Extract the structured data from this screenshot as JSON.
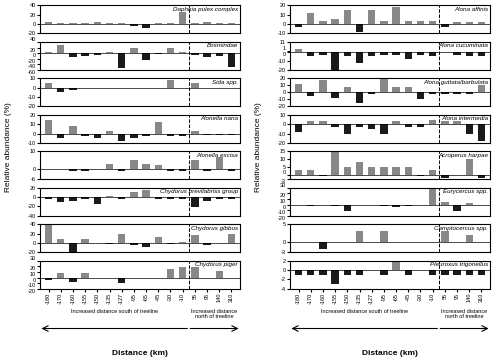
{
  "chart_data": [
    {
      "type": "bar",
      "title": "Daphnia pulex complex",
      "tick_labels": "y",
      "treeline": "-10",
      "categories": [
        "-180",
        "-170",
        "-160",
        "-155",
        "-150",
        "-135",
        "-127",
        "-95",
        "-65",
        "-45",
        "-30",
        "-10",
        "55",
        "95",
        "140",
        "310"
      ],
      "values": [
        5,
        3,
        2,
        2,
        5,
        3,
        3,
        -3,
        -8,
        3,
        3,
        25,
        2,
        5,
        3,
        3
      ],
      "colors": [
        "#888888",
        "#888888",
        "#888888",
        "#888888",
        "#888888",
        "#888888",
        "#888888",
        "#1a1a1a",
        "#1a1a1a",
        "#888888",
        "#888888",
        "#888888",
        "#888888",
        "#888888",
        "#888888",
        "#888888"
      ],
      "ylim": [
        -20,
        40
      ],
      "yticks": [
        -20,
        0,
        20,
        40
      ],
      "grid": false
    },
    {
      "type": "bar",
      "title": "Bosmindae",
      "tick_labels": "y",
      "treeline": "-10",
      "categories": [
        "-180",
        "-170",
        "-160",
        "-155",
        "-150",
        "-135",
        "-127",
        "-95",
        "-65",
        "-45",
        "-30",
        "-10",
        "55",
        "95",
        "140",
        "310"
      ],
      "values": [
        5,
        30,
        -15,
        -10,
        -5,
        5,
        -52,
        18,
        -25,
        -3,
        18,
        5,
        -8,
        -15,
        -12,
        -50
      ],
      "colors": [
        "#888888",
        "#888888",
        "#1a1a1a",
        "#1a1a1a",
        "#1a1a1a",
        "#888888",
        "#1a1a1a",
        "#888888",
        "#1a1a1a",
        "#1a1a1a",
        "#888888",
        "#888888",
        "#1a1a1a",
        "#1a1a1a",
        "#1a1a1a",
        "#1a1a1a"
      ],
      "ylim": [
        -60,
        40
      ],
      "yticks": [
        -60,
        -40,
        -20,
        0,
        20,
        40
      ],
      "grid": false
    },
    {
      "type": "bar",
      "title": "Sida spp.",
      "tick_labels": "y",
      "treeline": "-10",
      "categories": [
        "-180",
        "-170",
        "-160",
        "-155",
        "-150",
        "-135",
        "-127",
        "-95",
        "-65",
        "-45",
        "-30",
        "-10",
        "55",
        "95",
        "140",
        "310"
      ],
      "values": [
        5,
        -5,
        -2,
        0,
        0,
        0,
        0,
        0,
        0,
        0,
        8,
        0,
        5,
        0,
        0,
        0
      ],
      "colors": [
        "#888888",
        "#1a1a1a",
        "#1a1a1a",
        "#888888",
        "#888888",
        "#888888",
        "#888888",
        "#888888",
        "#888888",
        "#888888",
        "#888888",
        "#888888",
        "#888888",
        "#888888",
        "#888888",
        "#888888"
      ],
      "ylim": [
        -20,
        10
      ],
      "yticks": [
        -20,
        -10,
        0,
        10
      ],
      "grid": false
    },
    {
      "type": "bar",
      "title": "Alonella nana",
      "tick_labels": "y",
      "treeline": "-10",
      "categories": [
        "-180",
        "-170",
        "-160",
        "-155",
        "-150",
        "-135",
        "-127",
        "-95",
        "-65",
        "-45",
        "-30",
        "-10",
        "55",
        "95",
        "140",
        "310"
      ],
      "values": [
        15,
        -5,
        8,
        -3,
        -5,
        3,
        -8,
        -5,
        -3,
        12,
        -3,
        -3,
        3,
        -2,
        -2,
        -2
      ],
      "colors": [
        "#888888",
        "#1a1a1a",
        "#888888",
        "#1a1a1a",
        "#1a1a1a",
        "#888888",
        "#1a1a1a",
        "#1a1a1a",
        "#1a1a1a",
        "#888888",
        "#1a1a1a",
        "#1a1a1a",
        "#888888",
        "#1a1a1a",
        "#1a1a1a",
        "#1a1a1a"
      ],
      "ylim": [
        -10,
        20
      ],
      "yticks": [
        -10,
        0,
        10,
        20
      ],
      "grid": false
    },
    {
      "type": "bar",
      "title": "Alonella excisa",
      "tick_labels": "y",
      "treeline": "-10",
      "categories": [
        "-180",
        "-170",
        "-160",
        "-155",
        "-150",
        "-135",
        "-127",
        "-95",
        "-65",
        "-45",
        "-30",
        "-10",
        "55",
        "95",
        "140",
        "310"
      ],
      "values": [
        0,
        0,
        -1,
        -1,
        0,
        3,
        -1,
        5,
        3,
        2,
        -1,
        -1,
        5,
        -1,
        7,
        -1
      ],
      "colors": [
        "#888888",
        "#888888",
        "#1a1a1a",
        "#1a1a1a",
        "#888888",
        "#888888",
        "#1a1a1a",
        "#888888",
        "#888888",
        "#888888",
        "#1a1a1a",
        "#1a1a1a",
        "#888888",
        "#1a1a1a",
        "#888888",
        "#1a1a1a"
      ],
      "ylim": [
        -6,
        10
      ],
      "yticks": [
        -6,
        0,
        10
      ],
      "grid": false
    },
    {
      "type": "bar",
      "title": "Chydorus brevilabriss group",
      "tick_labels": "y",
      "treeline": "-10",
      "categories": [
        "-180",
        "-170",
        "-160",
        "-155",
        "-150",
        "-135",
        "-127",
        "-95",
        "-65",
        "-45",
        "-30",
        "-10",
        "55",
        "95",
        "140",
        "310"
      ],
      "values": [
        -5,
        -10,
        -8,
        -5,
        -15,
        3,
        -3,
        12,
        15,
        -3,
        -5,
        -3,
        -22,
        -8,
        -5,
        -5
      ],
      "colors": [
        "#1a1a1a",
        "#1a1a1a",
        "#1a1a1a",
        "#1a1a1a",
        "#1a1a1a",
        "#888888",
        "#1a1a1a",
        "#888888",
        "#888888",
        "#1a1a1a",
        "#1a1a1a",
        "#1a1a1a",
        "#1a1a1a",
        "#1a1a1a",
        "#1a1a1a",
        "#1a1a1a"
      ],
      "ylim": [
        -40,
        20
      ],
      "yticks": [
        -40,
        -20,
        0,
        20
      ],
      "grid": false
    },
    {
      "type": "bar",
      "title": "Chydorus gibbus",
      "tick_labels": "y",
      "treeline": "-10",
      "categories": [
        "-180",
        "-170",
        "-160",
        "-155",
        "-150",
        "-135",
        "-127",
        "-95",
        "-65",
        "-45",
        "-30",
        "-10",
        "55",
        "95",
        "140",
        "310"
      ],
      "values": [
        40,
        8,
        -20,
        8,
        0,
        -2,
        20,
        -5,
        -8,
        12,
        -3,
        3,
        18,
        -5,
        0,
        20
      ],
      "colors": [
        "#888888",
        "#888888",
        "#1a1a1a",
        "#888888",
        "#888888",
        "#1a1a1a",
        "#888888",
        "#1a1a1a",
        "#1a1a1a",
        "#888888",
        "#1a1a1a",
        "#888888",
        "#888888",
        "#1a1a1a",
        "#888888",
        "#888888"
      ],
      "ylim": [
        -20,
        40
      ],
      "yticks": [
        -20,
        0,
        20,
        40
      ],
      "grid": false
    },
    {
      "type": "bar",
      "title": "Chydorus piger",
      "treeline": "-10",
      "xlabel": "Distance (km)",
      "ylabel": "Relative abundance (%)",
      "annotations": [
        "Increased distance south of treeline",
        "Increased distance\nnorth of treeline"
      ],
      "categories": [
        "-180",
        "-170",
        "-160",
        "-155",
        "-150",
        "-135",
        "-127",
        "-95",
        "-65",
        "-45",
        "-30",
        "-10",
        "55",
        "95",
        "140",
        "310"
      ],
      "values": [
        -5,
        8,
        -8,
        8,
        0,
        0,
        -10,
        0,
        0,
        0,
        15,
        18,
        18,
        0,
        12,
        0
      ],
      "colors": [
        "#1a1a1a",
        "#888888",
        "#1a1a1a",
        "#888888",
        "#888888",
        "#888888",
        "#1a1a1a",
        "#888888",
        "#888888",
        "#888888",
        "#888888",
        "#888888",
        "#888888",
        "#888888",
        "#888888",
        "#888888"
      ],
      "ylim": [
        -20,
        30
      ],
      "yticks": [
        -20,
        -10,
        0,
        10,
        20,
        30
      ],
      "grid": false
    },
    {
      "type": "bar",
      "title": "Alona affinis",
      "tick_labels": "y",
      "treeline": "-10",
      "categories": [
        "-180",
        "-170",
        "-160",
        "-155",
        "-150",
        "-135",
        "-127",
        "-95",
        "-65",
        "-45",
        "-30",
        "-10",
        "55",
        "95",
        "140",
        "310"
      ],
      "values": [
        -3,
        12,
        3,
        5,
        15,
        -8,
        15,
        3,
        18,
        3,
        3,
        3,
        -3,
        2,
        2,
        2
      ],
      "colors": [
        "#1a1a1a",
        "#888888",
        "#888888",
        "#888888",
        "#888888",
        "#1a1a1a",
        "#888888",
        "#888888",
        "#888888",
        "#888888",
        "#888888",
        "#888888",
        "#1a1a1a",
        "#888888",
        "#888888",
        "#888888"
      ],
      "ylim": [
        -10,
        20
      ],
      "yticks": [
        -10,
        0,
        10,
        20
      ],
      "grid": false
    },
    {
      "type": "bar",
      "title": "Alona cucuminata",
      "tick_labels": "y",
      "treeline": "-10",
      "categories": [
        "-180",
        "-170",
        "-160",
        "-155",
        "-150",
        "-135",
        "-127",
        "-95",
        "-65",
        "-45",
        "-30",
        "-10",
        "55",
        "95",
        "140",
        "310"
      ],
      "values": [
        3,
        -5,
        -3,
        -20,
        -5,
        -12,
        -5,
        -3,
        -3,
        -8,
        -3,
        -5,
        0,
        -3,
        -5,
        -5
      ],
      "colors": [
        "#888888",
        "#1a1a1a",
        "#1a1a1a",
        "#1a1a1a",
        "#1a1a1a",
        "#1a1a1a",
        "#1a1a1a",
        "#1a1a1a",
        "#1a1a1a",
        "#1a1a1a",
        "#1a1a1a",
        "#1a1a1a",
        "#888888",
        "#1a1a1a",
        "#1a1a1a",
        "#1a1a1a"
      ],
      "ylim": [
        -20,
        11
      ],
      "yticks": [
        -20,
        -10,
        0,
        1,
        11
      ],
      "grid": false
    },
    {
      "type": "bar",
      "title": "Alona guttata/barbulata",
      "tick_labels": "y",
      "treeline": "-10",
      "categories": [
        "-180",
        "-170",
        "-160",
        "-155",
        "-150",
        "-135",
        "-127",
        "-95",
        "-65",
        "-45",
        "-30",
        "-10",
        "55",
        "95",
        "140",
        "310"
      ],
      "values": [
        12,
        -5,
        18,
        -8,
        8,
        -15,
        -3,
        20,
        8,
        8,
        -10,
        -3,
        -3,
        -3,
        -2,
        10
      ],
      "colors": [
        "#888888",
        "#1a1a1a",
        "#888888",
        "#1a1a1a",
        "#888888",
        "#1a1a1a",
        "#1a1a1a",
        "#888888",
        "#888888",
        "#888888",
        "#1a1a1a",
        "#1a1a1a",
        "#1a1a1a",
        "#1a1a1a",
        "#1a1a1a",
        "#888888"
      ],
      "ylim": [
        -20,
        20
      ],
      "yticks": [
        -20,
        -10,
        0,
        10,
        20
      ],
      "grid": false
    },
    {
      "type": "bar",
      "title": "Alona intermedia",
      "tick_labels": "y",
      "treeline": "-10",
      "categories": [
        "-180",
        "-170",
        "-160",
        "-155",
        "-150",
        "-135",
        "-127",
        "-95",
        "-65",
        "-45",
        "-30",
        "-10",
        "55",
        "95",
        "140",
        "310"
      ],
      "values": [
        -8,
        3,
        3,
        -3,
        -10,
        -3,
        -5,
        -10,
        3,
        -3,
        -3,
        5,
        3,
        3,
        -10,
        -18
      ],
      "colors": [
        "#1a1a1a",
        "#888888",
        "#888888",
        "#1a1a1a",
        "#1a1a1a",
        "#1a1a1a",
        "#1a1a1a",
        "#1a1a1a",
        "#888888",
        "#1a1a1a",
        "#1a1a1a",
        "#888888",
        "#888888",
        "#888888",
        "#1a1a1a",
        "#1a1a1a"
      ],
      "ylim": [
        -20,
        10
      ],
      "yticks": [
        -20,
        -10,
        0,
        10
      ],
      "grid": false
    },
    {
      "type": "bar",
      "title": "Acroperus harpae",
      "tick_labels": "y",
      "treeline": "-10",
      "categories": [
        "-180",
        "-170",
        "-160",
        "-155",
        "-150",
        "-135",
        "-127",
        "-95",
        "-65",
        "-45",
        "-30",
        "-10",
        "55",
        "95",
        "140",
        "310"
      ],
      "values": [
        3,
        3,
        -1,
        15,
        5,
        8,
        5,
        5,
        5,
        5,
        -1,
        3,
        -2,
        0,
        10,
        -2
      ],
      "colors": [
        "#888888",
        "#888888",
        "#1a1a1a",
        "#888888",
        "#888888",
        "#888888",
        "#888888",
        "#888888",
        "#888888",
        "#888888",
        "#1a1a1a",
        "#888888",
        "#1a1a1a",
        "#888888",
        "#888888",
        "#1a1a1a"
      ],
      "ylim": [
        -3,
        15
      ],
      "yticks": [
        -3,
        0,
        5,
        10,
        15
      ],
      "grid": false
    },
    {
      "type": "bar",
      "title": "Eurycercus spp.",
      "tick_labels": "y",
      "treeline": "-10",
      "categories": [
        "-180",
        "-170",
        "-160",
        "-155",
        "-150",
        "-135",
        "-127",
        "-95",
        "-65",
        "-45",
        "-30",
        "-10",
        "55",
        "95",
        "140",
        "310"
      ],
      "values": [
        0,
        -3,
        0,
        -3,
        -12,
        0,
        0,
        -3,
        -5,
        -3,
        0,
        28,
        5,
        -12,
        3,
        0
      ],
      "colors": [
        "#888888",
        "#1a1a1a",
        "#888888",
        "#1a1a1a",
        "#1a1a1a",
        "#888888",
        "#888888",
        "#1a1a1a",
        "#1a1a1a",
        "#1a1a1a",
        "#888888",
        "#888888",
        "#888888",
        "#1a1a1a",
        "#888888",
        "#888888"
      ],
      "ylim": [
        -20,
        30
      ],
      "yticks": [
        -20,
        -10,
        0,
        10,
        20,
        30
      ],
      "grid": false
    },
    {
      "type": "bar",
      "title": "Camptocercus spp.",
      "tick_labels": "y",
      "treeline": "-10",
      "categories": [
        "-180",
        "-170",
        "-160",
        "-155",
        "-150",
        "-135",
        "-127",
        "-95",
        "-65",
        "-45",
        "-30",
        "-10",
        "55",
        "95",
        "140",
        "310"
      ],
      "values": [
        0,
        0,
        -2,
        0,
        0,
        3,
        0,
        3,
        0,
        0,
        0,
        0,
        3,
        0,
        2,
        0
      ],
      "colors": [
        "#888888",
        "#888888",
        "#1a1a1a",
        "#888888",
        "#888888",
        "#888888",
        "#888888",
        "#888888",
        "#888888",
        "#888888",
        "#888888",
        "#888888",
        "#888888",
        "#888888",
        "#888888",
        "#888888"
      ],
      "ylim": [
        -3,
        5
      ],
      "yticks": [
        -3,
        0,
        5
      ],
      "grid": false
    },
    {
      "type": "bar",
      "title": "Pleuroxus trigonellus",
      "treeline": "-10",
      "xlabel": "Distance (km)",
      "ylabel": "Relative abundance (%)",
      "annotations": [
        "Increased distance south of treeline",
        "Increased distance\nnorth of treeline"
      ],
      "categories": [
        "-180",
        "-170",
        "-160",
        "-155",
        "-150",
        "-135",
        "-127",
        "-95",
        "-65",
        "-45",
        "-30",
        "-10",
        "55",
        "95",
        "140",
        "310"
      ],
      "values": [
        -1,
        -1,
        -1,
        -3,
        -1,
        -1,
        0,
        -1,
        2,
        -1,
        0,
        -1,
        -1,
        -1,
        -1,
        -1
      ],
      "colors": [
        "#1a1a1a",
        "#1a1a1a",
        "#1a1a1a",
        "#1a1a1a",
        "#1a1a1a",
        "#1a1a1a",
        "#888888",
        "#1a1a1a",
        "#888888",
        "#1a1a1a",
        "#888888",
        "#1a1a1a",
        "#1a1a1a",
        "#1a1a1a",
        "#1a1a1a",
        "#1a1a1a"
      ],
      "ylim": [
        -4,
        2
      ],
      "yticks": [
        -4,
        -2,
        0,
        2
      ],
      "grid": false
    }
  ]
}
